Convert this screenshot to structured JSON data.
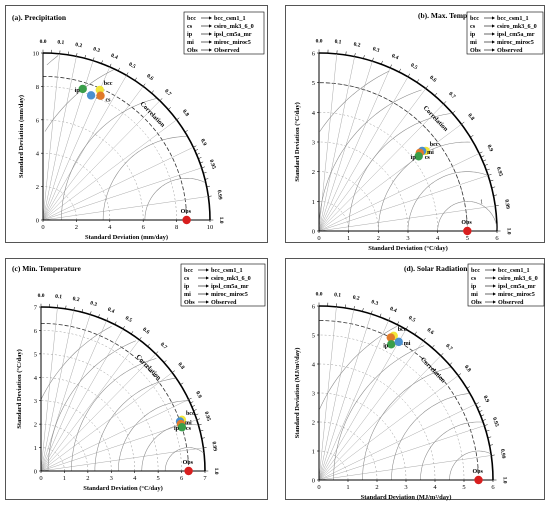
{
  "legend_entries": [
    {
      "abbr": "bcc",
      "name": "bcc_csm1_1"
    },
    {
      "abbr": "cs",
      "name": "csiro_mk3_6_0"
    },
    {
      "abbr": "ip",
      "name": "ipsl_cm5a_mr"
    },
    {
      "abbr": "mi",
      "name": "miroc_miroc5"
    },
    {
      "abbr": "Obs",
      "name": "Observed"
    }
  ],
  "correlation_label": "Correlation",
  "corr_ticks": [
    "0.0",
    "0.1",
    "0.2",
    "0.3",
    "0.4",
    "0.5",
    "0.6",
    "0.7",
    "0.8",
    "0.9",
    "0.95",
    "0.99",
    "1.0"
  ],
  "chart_data": [
    {
      "type": "scatter",
      "subtype": "taylor_diagram",
      "title": "(a). Precipitation",
      "xlabel": "Standard Deviation (mm/day)",
      "ylabel": "Standard Deviation (mm/day)",
      "max_sd": 10,
      "sd_ticks": [
        0,
        2,
        4,
        6,
        8,
        10
      ],
      "sd_tick_labels": [
        "0",
        "2",
        "4",
        "6",
        "8",
        "10"
      ],
      "rms_levels": [
        2.5,
        5,
        7.5,
        10,
        12.5
      ],
      "rms_labels": [
        "2.5",
        "5",
        "7.5",
        "10",
        "12.5"
      ],
      "obs_sd": 8.6,
      "points": [
        {
          "label": "bcc",
          "sd": 8.5,
          "corr": 0.4,
          "color": "#f2e63a"
        },
        {
          "label": "ip",
          "sd": 8.2,
          "corr": 0.29,
          "color": "#3a9e4a"
        },
        {
          "label": "mi",
          "sd": 8.0,
          "corr": 0.36,
          "color": "#4a90d0"
        },
        {
          "label": "cs",
          "sd": 8.2,
          "corr": 0.42,
          "color": "#e07a2a"
        },
        {
          "label": "Obs",
          "sd": 8.6,
          "corr": 1.0,
          "color": "#d81e1e"
        }
      ],
      "point_label_order": [
        "bcc",
        "ip",
        "mi",
        "cs",
        "Obs"
      ],
      "legend_position": "top-right"
    },
    {
      "type": "scatter",
      "subtype": "taylor_diagram",
      "title": "(b). Max. Temperature",
      "xlabel": "Standard Deviation (°C/day)",
      "ylabel": "Standard Deviation (°C/day)",
      "max_sd": 6,
      "sd_ticks": [
        0,
        1,
        2,
        3,
        4,
        5,
        6
      ],
      "sd_tick_labels": [
        "0",
        "1",
        "2",
        "3",
        "4",
        "5",
        "6"
      ],
      "rms_levels": [
        1,
        2,
        3,
        4,
        5,
        6
      ],
      "rms_labels": [
        "1",
        "2",
        "3",
        "4",
        "5",
        "6"
      ],
      "obs_sd": 5.0,
      "points": [
        {
          "label": "bcc",
          "sd": 4.5,
          "corr": 0.8,
          "color": "#f2e63a"
        },
        {
          "label": "mi",
          "sd": 4.4,
          "corr": 0.79,
          "color": "#4a90d0"
        },
        {
          "label": "cs",
          "sd": 4.3,
          "corr": 0.79,
          "color": "#e07a2a"
        },
        {
          "label": "ip",
          "sd": 4.2,
          "corr": 0.8,
          "color": "#3a9e4a"
        },
        {
          "label": "Obs",
          "sd": 5.0,
          "corr": 1.0,
          "color": "#d81e1e"
        }
      ],
      "legend_position": "top-right"
    },
    {
      "type": "scatter",
      "subtype": "taylor_diagram",
      "title": "(c) Min. Temperature",
      "xlabel": "Standard Deviation (°C/day)",
      "ylabel": "Standard Deviation (°C/day)",
      "max_sd": 7,
      "sd_ticks": [
        0,
        1,
        2,
        3,
        4,
        5,
        6,
        7
      ],
      "sd_tick_labels": [
        "0",
        "1",
        "2",
        "3",
        "4",
        "5",
        "6",
        "7"
      ],
      "rms_levels": [
        1,
        2,
        3,
        4,
        5,
        6,
        7
      ],
      "rms_labels": [
        "1",
        "2",
        "3",
        "4",
        "5",
        "6",
        "7"
      ],
      "obs_sd": 6.3,
      "points": [
        {
          "label": "bcc",
          "sd": 6.4,
          "corr": 0.94,
          "color": "#f2e63a"
        },
        {
          "label": "mi",
          "sd": 6.3,
          "corr": 0.942,
          "color": "#4a90d0"
        },
        {
          "label": "cs",
          "sd": 6.3,
          "corr": 0.948,
          "color": "#e07a2a"
        },
        {
          "label": "ip",
          "sd": 6.3,
          "corr": 0.955,
          "color": "#3a9e4a"
        },
        {
          "label": "Obs",
          "sd": 6.3,
          "corr": 1.0,
          "color": "#d81e1e"
        }
      ],
      "legend_position": "top-right"
    },
    {
      "type": "scatter",
      "subtype": "taylor_diagram",
      "title": "(d). Solar Radiation",
      "xlabel": "Standard Deviation (MJ/m²/day)",
      "ylabel": "Standard Deviation (MJ/m²/day)",
      "max_sd": 6,
      "sd_ticks": [
        0,
        1,
        2,
        3,
        4,
        5,
        6
      ],
      "sd_tick_labels": [
        "0",
        "1",
        "2",
        "3",
        "4",
        "5",
        "6"
      ],
      "rms_levels": [
        1,
        2,
        3,
        4,
        5,
        6
      ],
      "rms_labels": [
        "1",
        "2",
        "3",
        "4",
        "5",
        "6"
      ],
      "obs_sd": 5.5,
      "points": [
        {
          "label": "bcc",
          "sd": 5.6,
          "corr": 0.46,
          "color": "#f2e63a"
        },
        {
          "label": "cs",
          "sd": 5.5,
          "corr": 0.45,
          "color": "#e07a2a"
        },
        {
          "label": "ip",
          "sd": 5.3,
          "corr": 0.47,
          "color": "#3a9e4a"
        },
        {
          "label": "mi",
          "sd": 5.5,
          "corr": 0.5,
          "color": "#4a90d0"
        },
        {
          "label": "Obs",
          "sd": 5.5,
          "corr": 1.0,
          "color": "#d81e1e"
        }
      ],
      "legend_position": "top-right"
    }
  ]
}
